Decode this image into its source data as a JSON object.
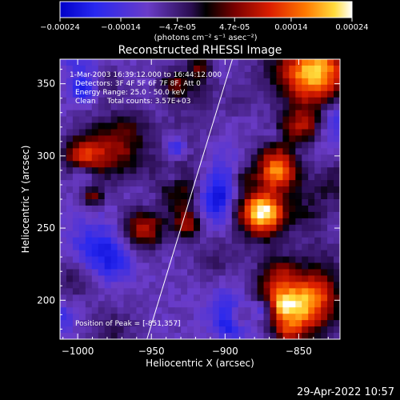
{
  "colorbar": {
    "ticks": [
      "-0.00024",
      "-0.00014",
      "-4.7e-05",
      "4.7e-05",
      "0.00014",
      "0.00024"
    ],
    "unit_label": "(photons cm⁻² s⁻¹ asec⁻²)"
  },
  "chart_data": {
    "type": "heatmap",
    "title": "Reconstructed RHESSI Image",
    "xlabel": "Heliocentric X (arcsec)",
    "ylabel": "Heliocentric Y (arcsec)",
    "xlim": [
      -1012,
      -822
    ],
    "ylim": [
      173,
      367
    ],
    "x_ticks": [
      -1000,
      -950,
      -900,
      -850
    ],
    "y_ticks": [
      200,
      250,
      300,
      350
    ],
    "x_tick_labels": [
      "−1000",
      "−950",
      "−900",
      "−850"
    ],
    "y_tick_labels": [
      "200",
      "250",
      "300",
      "350"
    ],
    "value_range": [
      -0.00024,
      0.00024
    ],
    "colormap": "blue-purple-red-yellow-white",
    "annotations": [
      "1-Mar-2003 16:39:12.000 to 16:44:12.000",
      "Detectors: 3F 4F 5F 6F 7F 8F, Att 0",
      "Energy Range: 25.0 - 50.0 keV",
      "Clean     Total counts: 3.57E+03"
    ],
    "peak_label": "Position of Peak = [-851,357]",
    "limb_line": {
      "x": [
        -953,
        -895
      ],
      "y": [
        173,
        367
      ]
    }
  },
  "footer": {
    "timestamp": "29-Apr-2022 10:57"
  }
}
